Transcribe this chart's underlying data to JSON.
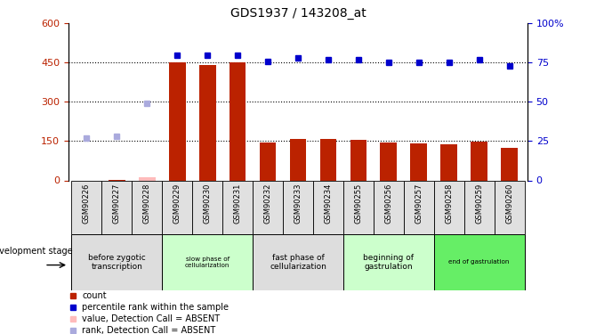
{
  "title": "GDS1937 / 143208_at",
  "samples": [
    "GSM90226",
    "GSM90227",
    "GSM90228",
    "GSM90229",
    "GSM90230",
    "GSM90231",
    "GSM90232",
    "GSM90233",
    "GSM90234",
    "GSM90255",
    "GSM90256",
    "GSM90257",
    "GSM90258",
    "GSM90259",
    "GSM90260"
  ],
  "count_values": [
    null,
    3,
    12,
    450,
    440,
    450,
    145,
    160,
    158,
    155,
    145,
    140,
    138,
    148,
    125
  ],
  "count_absent": [
    false,
    false,
    true,
    false,
    false,
    false,
    false,
    false,
    false,
    false,
    false,
    false,
    false,
    false,
    false
  ],
  "rank_values": [
    27,
    28,
    49,
    80,
    80,
    80,
    76,
    78,
    77,
    77,
    75,
    75,
    75,
    77,
    73
  ],
  "rank_absent": [
    true,
    true,
    true,
    false,
    false,
    false,
    false,
    false,
    false,
    false,
    false,
    false,
    false,
    false,
    false
  ],
  "bar_color": "#bb2200",
  "bar_absent_color": "#ffbbbb",
  "dot_color": "#0000cc",
  "dot_absent_color": "#aaaadd",
  "left_ylim": [
    0,
    600
  ],
  "left_yticks": [
    0,
    150,
    300,
    450,
    600
  ],
  "right_ylim": [
    0,
    100
  ],
  "right_yticks": [
    0,
    25,
    50,
    75,
    100
  ],
  "stage_groups": [
    {
      "label": "before zygotic\ntranscription",
      "indices": [
        0,
        1,
        2
      ],
      "color": "#dddddd",
      "fontsize_scale": 1.0
    },
    {
      "label": "slow phase of\ncellularization",
      "indices": [
        3,
        4,
        5
      ],
      "color": "#ccffcc",
      "fontsize_scale": 0.8
    },
    {
      "label": "fast phase of\ncellularization",
      "indices": [
        6,
        7,
        8
      ],
      "color": "#dddddd",
      "fontsize_scale": 1.0
    },
    {
      "label": "beginning of\ngastrulation",
      "indices": [
        9,
        10,
        11
      ],
      "color": "#ccffcc",
      "fontsize_scale": 1.0
    },
    {
      "label": "end of gastrulation",
      "indices": [
        12,
        13,
        14
      ],
      "color": "#66ee66",
      "fontsize_scale": 0.8
    }
  ],
  "dev_stage_label": "development stage",
  "legend_items": [
    {
      "label": "count",
      "color": "#bb2200"
    },
    {
      "label": "percentile rank within the sample",
      "color": "#0000cc"
    },
    {
      "label": "value, Detection Call = ABSENT",
      "color": "#ffbbbb"
    },
    {
      "label": "rank, Detection Call = ABSENT",
      "color": "#aaaadd"
    }
  ]
}
